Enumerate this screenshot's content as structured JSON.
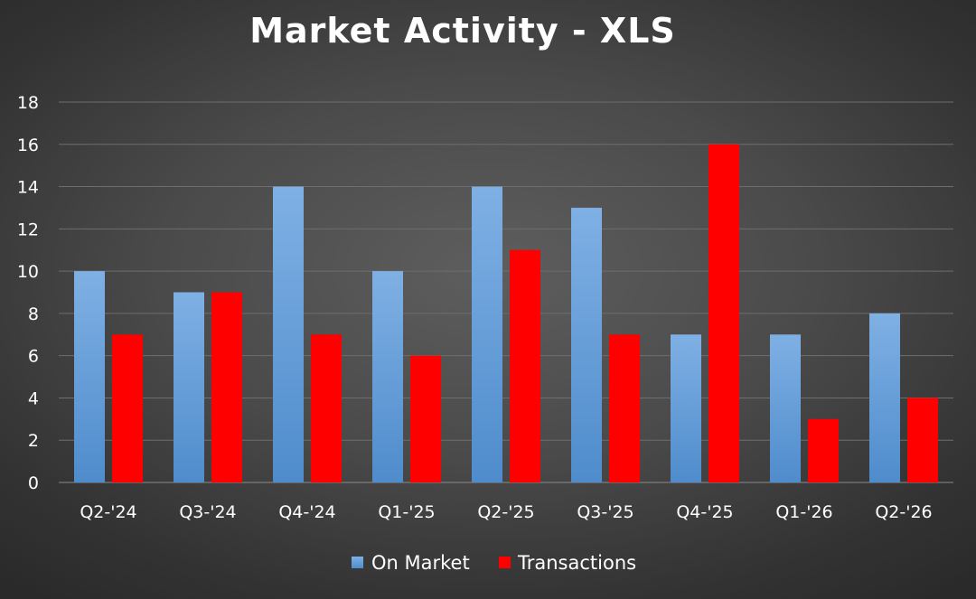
{
  "chart_data": {
    "type": "bar",
    "title": "Market Activity - XLS",
    "xlabel": "",
    "ylabel": "",
    "ylim": [
      0,
      18
    ],
    "yticks": [
      0,
      2,
      4,
      6,
      8,
      10,
      12,
      14,
      16,
      18
    ],
    "categories": [
      "Q2-'24",
      "Q3-'24",
      "Q4-'24",
      "Q1-'25",
      "Q2-'25",
      "Q3-'25",
      "Q4-'25",
      "Q1-'26",
      "Q2-'26"
    ],
    "series": [
      {
        "name": "On Market",
        "color": "#6fa3dc",
        "values": [
          10,
          9,
          14,
          10,
          14,
          13,
          7,
          7,
          8
        ]
      },
      {
        "name": "Transactions",
        "color": "#ff0000",
        "values": [
          7,
          9,
          7,
          6,
          11,
          7,
          16,
          3,
          4
        ]
      }
    ],
    "grid": true,
    "legend_position": "bottom"
  }
}
